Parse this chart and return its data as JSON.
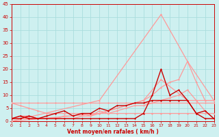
{
  "xlabel": "Vent moyen/en rafales ( km/h )",
  "xlim": [
    0,
    23
  ],
  "ylim": [
    0,
    45
  ],
  "yticks": [
    0,
    5,
    10,
    15,
    20,
    25,
    30,
    35,
    40,
    45
  ],
  "xticks": [
    0,
    1,
    2,
    3,
    4,
    5,
    6,
    7,
    8,
    9,
    10,
    11,
    12,
    13,
    14,
    15,
    16,
    17,
    18,
    19,
    20,
    21,
    22,
    23
  ],
  "bg_color": "#cef0f0",
  "grid_color": "#aadddd",
  "series": [
    {
      "x": [
        0,
        1,
        2,
        3,
        4,
        5,
        6,
        7,
        8,
        9,
        10,
        11,
        12,
        13,
        14,
        15,
        16,
        17,
        18,
        19,
        20,
        21,
        22,
        23
      ],
      "y": [
        7,
        7,
        7,
        7,
        7,
        7,
        7,
        7,
        7,
        7,
        7,
        7,
        7,
        7,
        7,
        7,
        7,
        7,
        7,
        7,
        7,
        7,
        7,
        7
      ],
      "color": "#ff9999",
      "lw": 0.9
    },
    {
      "x": [
        0,
        1,
        2,
        3,
        4,
        5,
        6,
        7,
        8,
        9,
        10,
        11,
        12,
        13,
        14,
        15,
        16,
        17,
        18,
        19,
        20,
        21,
        22,
        23
      ],
      "y": [
        7,
        6,
        5,
        4,
        3,
        3,
        3,
        3,
        3,
        3,
        3,
        3,
        3,
        3,
        3,
        3,
        3,
        3,
        3,
        3,
        3,
        3,
        3,
        3
      ],
      "color": "#ff9999",
      "lw": 0.9
    },
    {
      "x": [
        0,
        10,
        17,
        20,
        23
      ],
      "y": [
        0,
        8,
        41,
        23,
        8
      ],
      "color": "#ff9999",
      "lw": 0.9
    },
    {
      "x": [
        0,
        10,
        15,
        17,
        20,
        23
      ],
      "y": [
        0,
        3,
        8,
        16,
        8,
        8
      ],
      "color": "#ff9999",
      "lw": 0.9
    },
    {
      "x": [
        0,
        1,
        2,
        3,
        4,
        5,
        6,
        7,
        8,
        9,
        10,
        11,
        12,
        13,
        14,
        15,
        16,
        17,
        18,
        19,
        20,
        21,
        22,
        23
      ],
      "y": [
        1,
        1,
        1,
        1,
        1,
        1,
        1,
        1,
        2,
        2,
        3,
        4,
        5,
        6,
        7,
        8,
        10,
        13,
        15,
        16,
        23,
        15,
        8,
        8
      ],
      "color": "#ff9999",
      "lw": 0.9
    },
    {
      "x": [
        0,
        1,
        2,
        3,
        4,
        5,
        6,
        7,
        8,
        9,
        10,
        11,
        12,
        13,
        14,
        15,
        16,
        17,
        18,
        19,
        20,
        21,
        22,
        23
      ],
      "y": [
        1,
        2,
        2,
        1,
        1,
        1,
        2,
        2,
        3,
        2,
        4,
        3,
        4,
        5,
        6,
        6,
        7,
        8,
        9,
        10,
        12,
        8,
        4,
        1
      ],
      "color": "#ff9999",
      "lw": 0.9
    },
    {
      "x": [
        0,
        1,
        2,
        3,
        4,
        5,
        6,
        7,
        8,
        9,
        10,
        11,
        12,
        13,
        14,
        15,
        16,
        17,
        18,
        19,
        20,
        21,
        22,
        23
      ],
      "y": [
        1,
        1,
        2,
        1,
        1,
        1,
        1,
        1,
        1,
        1,
        1,
        1,
        1,
        1,
        1,
        3,
        10,
        20,
        10,
        12,
        8,
        3,
        4,
        1
      ],
      "color": "#cc0000",
      "lw": 1.0
    },
    {
      "x": [
        0,
        1,
        2,
        3,
        4,
        5,
        6,
        7,
        8,
        9,
        10,
        11,
        12,
        13,
        14,
        15,
        16,
        17,
        18,
        19,
        20,
        21,
        22,
        23
      ],
      "y": [
        1,
        2,
        1,
        1,
        2,
        3,
        4,
        2,
        3,
        3,
        5,
        4,
        6,
        6,
        7,
        7,
        8,
        8,
        8,
        8,
        8,
        3,
        1,
        1
      ],
      "color": "#cc0000",
      "lw": 1.0
    }
  ]
}
